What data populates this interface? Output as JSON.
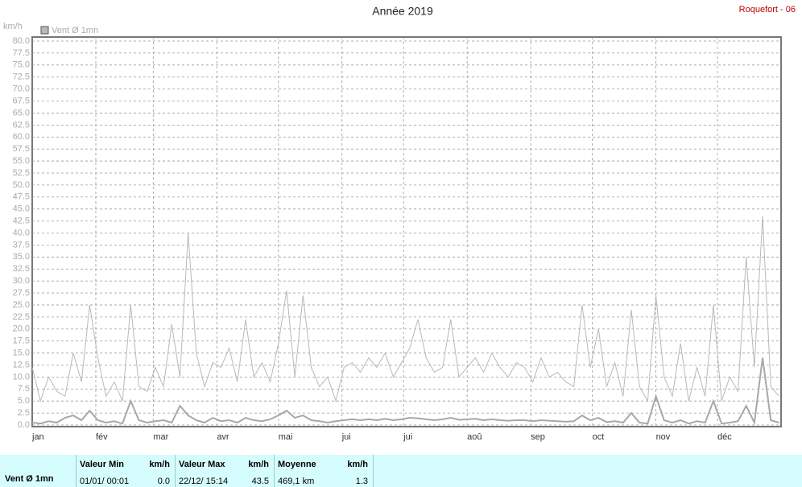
{
  "chart_data": {
    "type": "line",
    "title": "Année 2019",
    "station": "Roquefort - 06",
    "y_label": "km/h",
    "x": [
      0,
      4,
      8,
      12,
      16,
      20,
      24,
      28,
      32,
      36,
      40,
      44,
      48,
      52,
      56,
      60,
      64,
      68,
      72,
      76,
      80,
      84,
      88,
      92,
      96,
      100,
      104,
      108,
      112,
      116,
      120,
      124,
      128,
      132,
      136,
      140,
      144,
      148,
      152,
      156,
      160,
      164,
      168,
      172,
      176,
      180,
      184,
      188,
      192,
      196,
      200,
      204,
      208,
      212,
      216,
      220,
      224,
      228,
      232,
      236,
      240,
      244,
      248,
      252,
      256,
      260,
      264,
      268,
      272,
      276,
      280,
      284,
      288,
      292,
      296,
      300,
      304,
      308,
      312,
      316,
      320,
      324,
      328,
      332,
      336,
      340,
      344,
      348,
      352,
      356,
      360,
      364
    ],
    "series": [
      {
        "name": "Vent Ø 1mn",
        "color": "#b9b9b9",
        "values": [
          12,
          5,
          10,
          7,
          6,
          15,
          9,
          25,
          14,
          6,
          9,
          5,
          25,
          8,
          7,
          12,
          8,
          21,
          10,
          40,
          15,
          8,
          13,
          12,
          16,
          9,
          22,
          10,
          13,
          9,
          17,
          28,
          10,
          27,
          12,
          8,
          10,
          5,
          12,
          13,
          11,
          14,
          12,
          15,
          10,
          13,
          16,
          22,
          14,
          11,
          12,
          22,
          10,
          12,
          14,
          11,
          15,
          12,
          10,
          13,
          12,
          9,
          14,
          10,
          11,
          9,
          8,
          25,
          12,
          20,
          8,
          13,
          6,
          24,
          8,
          5,
          27,
          10,
          6,
          17,
          5,
          12,
          6,
          25,
          5,
          10,
          7,
          35,
          12,
          43.5,
          8,
          6
        ]
      },
      {
        "color": "#a8a8a8",
        "values": [
          0.5,
          0.3,
          0.8,
          0.5,
          1.5,
          2,
          1,
          3,
          1,
          0.5,
          0.8,
          0.3,
          5,
          1,
          0.5,
          0.8,
          1,
          0.5,
          4,
          2,
          1,
          0.5,
          1.5,
          0.8,
          1,
          0.5,
          1.5,
          1,
          0.8,
          1.2,
          2,
          3,
          1.5,
          2,
          1,
          0.8,
          0.5,
          0.8,
          1,
          1.2,
          1,
          1.2,
          1,
          1.3,
          1,
          1.2,
          1.5,
          1.4,
          1.2,
          1,
          1.2,
          1.5,
          1.1,
          1.2,
          1.3,
          1,
          1.2,
          1,
          0.9,
          1,
          1,
          0.8,
          1,
          0.9,
          0.8,
          0.7,
          0.8,
          2,
          1,
          1.5,
          0.6,
          0.8,
          0.5,
          2.5,
          0.5,
          0.3,
          6,
          1,
          0.5,
          1,
          0.3,
          0.8,
          0.5,
          5,
          0.3,
          0.5,
          0.8,
          4,
          0.5,
          14,
          1,
          0.5
        ]
      }
    ],
    "xlim": [
      0,
      365
    ],
    "xticks": [
      {
        "value": 0,
        "label": "jan"
      },
      {
        "value": 31,
        "label": "fév"
      },
      {
        "value": 59,
        "label": "mar"
      },
      {
        "value": 90,
        "label": "avr"
      },
      {
        "value": 120,
        "label": "mai"
      },
      {
        "value": 151,
        "label": "jui"
      },
      {
        "value": 181,
        "label": "jui"
      },
      {
        "value": 212,
        "label": "aoû"
      },
      {
        "value": 243,
        "label": "sep"
      },
      {
        "value": 273,
        "label": "oct"
      },
      {
        "value": 304,
        "label": "nov"
      },
      {
        "value": 334,
        "label": "déc"
      }
    ],
    "ylim": [
      0,
      80
    ],
    "yticks": [
      {
        "value": 0,
        "label": "0.0"
      },
      {
        "value": 2.5,
        "label": "2.5"
      },
      {
        "value": 5,
        "label": "5.0"
      },
      {
        "value": 7.5,
        "label": "7.5"
      },
      {
        "value": 10,
        "label": "10.0"
      },
      {
        "value": 12.5,
        "label": "12.5"
      },
      {
        "value": 15,
        "label": "15.0"
      },
      {
        "value": 17.5,
        "label": "17.5"
      },
      {
        "value": 20,
        "label": "20.0"
      },
      {
        "value": 22.5,
        "label": "22.5"
      },
      {
        "value": 25,
        "label": "25.0"
      },
      {
        "value": 27.5,
        "label": "27.5"
      },
      {
        "value": 30,
        "label": "30.0"
      },
      {
        "value": 32.5,
        "label": "32.5"
      },
      {
        "value": 35,
        "label": "35.0"
      },
      {
        "value": 37.5,
        "label": "37.5"
      },
      {
        "value": 40,
        "label": "40.0"
      },
      {
        "value": 42.5,
        "label": "42.5"
      },
      {
        "value": 45,
        "label": "45.0"
      },
      {
        "value": 47.5,
        "label": "47.5"
      },
      {
        "value": 50,
        "label": "50.0"
      },
      {
        "value": 52.5,
        "label": "52.5"
      },
      {
        "value": 55,
        "label": "55.0"
      },
      {
        "value": 57.5,
        "label": "57.5"
      },
      {
        "value": 60,
        "label": "60.0"
      },
      {
        "value": 62.5,
        "label": "62.5"
      },
      {
        "value": 65,
        "label": "65.0"
      },
      {
        "value": 67.5,
        "label": "67.5"
      },
      {
        "value": 70,
        "label": "70.0"
      },
      {
        "value": 72.5,
        "label": "72.5"
      },
      {
        "value": 75,
        "label": "75.0"
      },
      {
        "value": 77.5,
        "label": "77.5"
      },
      {
        "value": 80,
        "label": "80.0"
      }
    ],
    "grid": true
  },
  "stats": {
    "label": "Vent Ø 1mn",
    "columns": [
      {
        "header": "Valeur Min",
        "unit": "km/h",
        "info": "01/01/ 00:01",
        "value": "0.0"
      },
      {
        "header": "Valeur Max",
        "unit": "km/h",
        "info": "22/12/ 15:14",
        "value": "43.5"
      },
      {
        "header": "Moyenne",
        "unit": "km/h",
        "info": "469,1 km",
        "value": "1.3"
      }
    ]
  }
}
